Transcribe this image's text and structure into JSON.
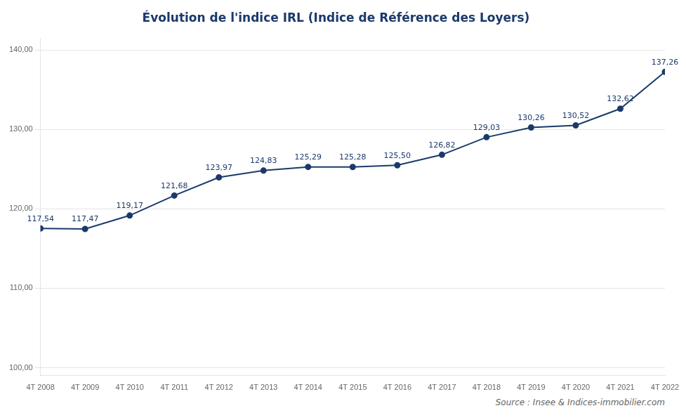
{
  "chart_data": {
    "type": "line",
    "title": "Évolution de l'indice IRL (Indice de Référence des Loyers)",
    "categories": [
      "4T 2008",
      "4T 2009",
      "4T 2010",
      "4T 2011",
      "4T 2012",
      "4T 2013",
      "4T 2014",
      "4T 2015",
      "4T 2016",
      "4T 2017",
      "4T 2018",
      "4T 2019",
      "4T 2020",
      "4T 2021",
      "4T 2022"
    ],
    "values": [
      117.54,
      117.47,
      119.17,
      121.68,
      123.97,
      124.83,
      125.29,
      125.28,
      125.5,
      126.82,
      129.03,
      130.26,
      130.52,
      132.62,
      137.26
    ],
    "value_labels": [
      "117,54",
      "117,47",
      "119,17",
      "121,68",
      "123,97",
      "124,83",
      "125,29",
      "125,28",
      "125,50",
      "126,82",
      "129,03",
      "130,26",
      "130,52",
      "132,62",
      "137,26"
    ],
    "data_labels": true,
    "color": "#1b3a6b",
    "marker": "circle",
    "ylim": [
      99,
      141.5
    ],
    "yticks": [
      {
        "value": 100,
        "label": "100,00"
      },
      {
        "value": 110,
        "label": "110,00"
      },
      {
        "value": 120,
        "label": "120,00"
      },
      {
        "value": 130,
        "label": "130,00"
      },
      {
        "value": 140,
        "label": "140,00"
      }
    ],
    "grid": true,
    "annotations": [
      "Source : Insee & Indices-immobilier.com"
    ]
  }
}
